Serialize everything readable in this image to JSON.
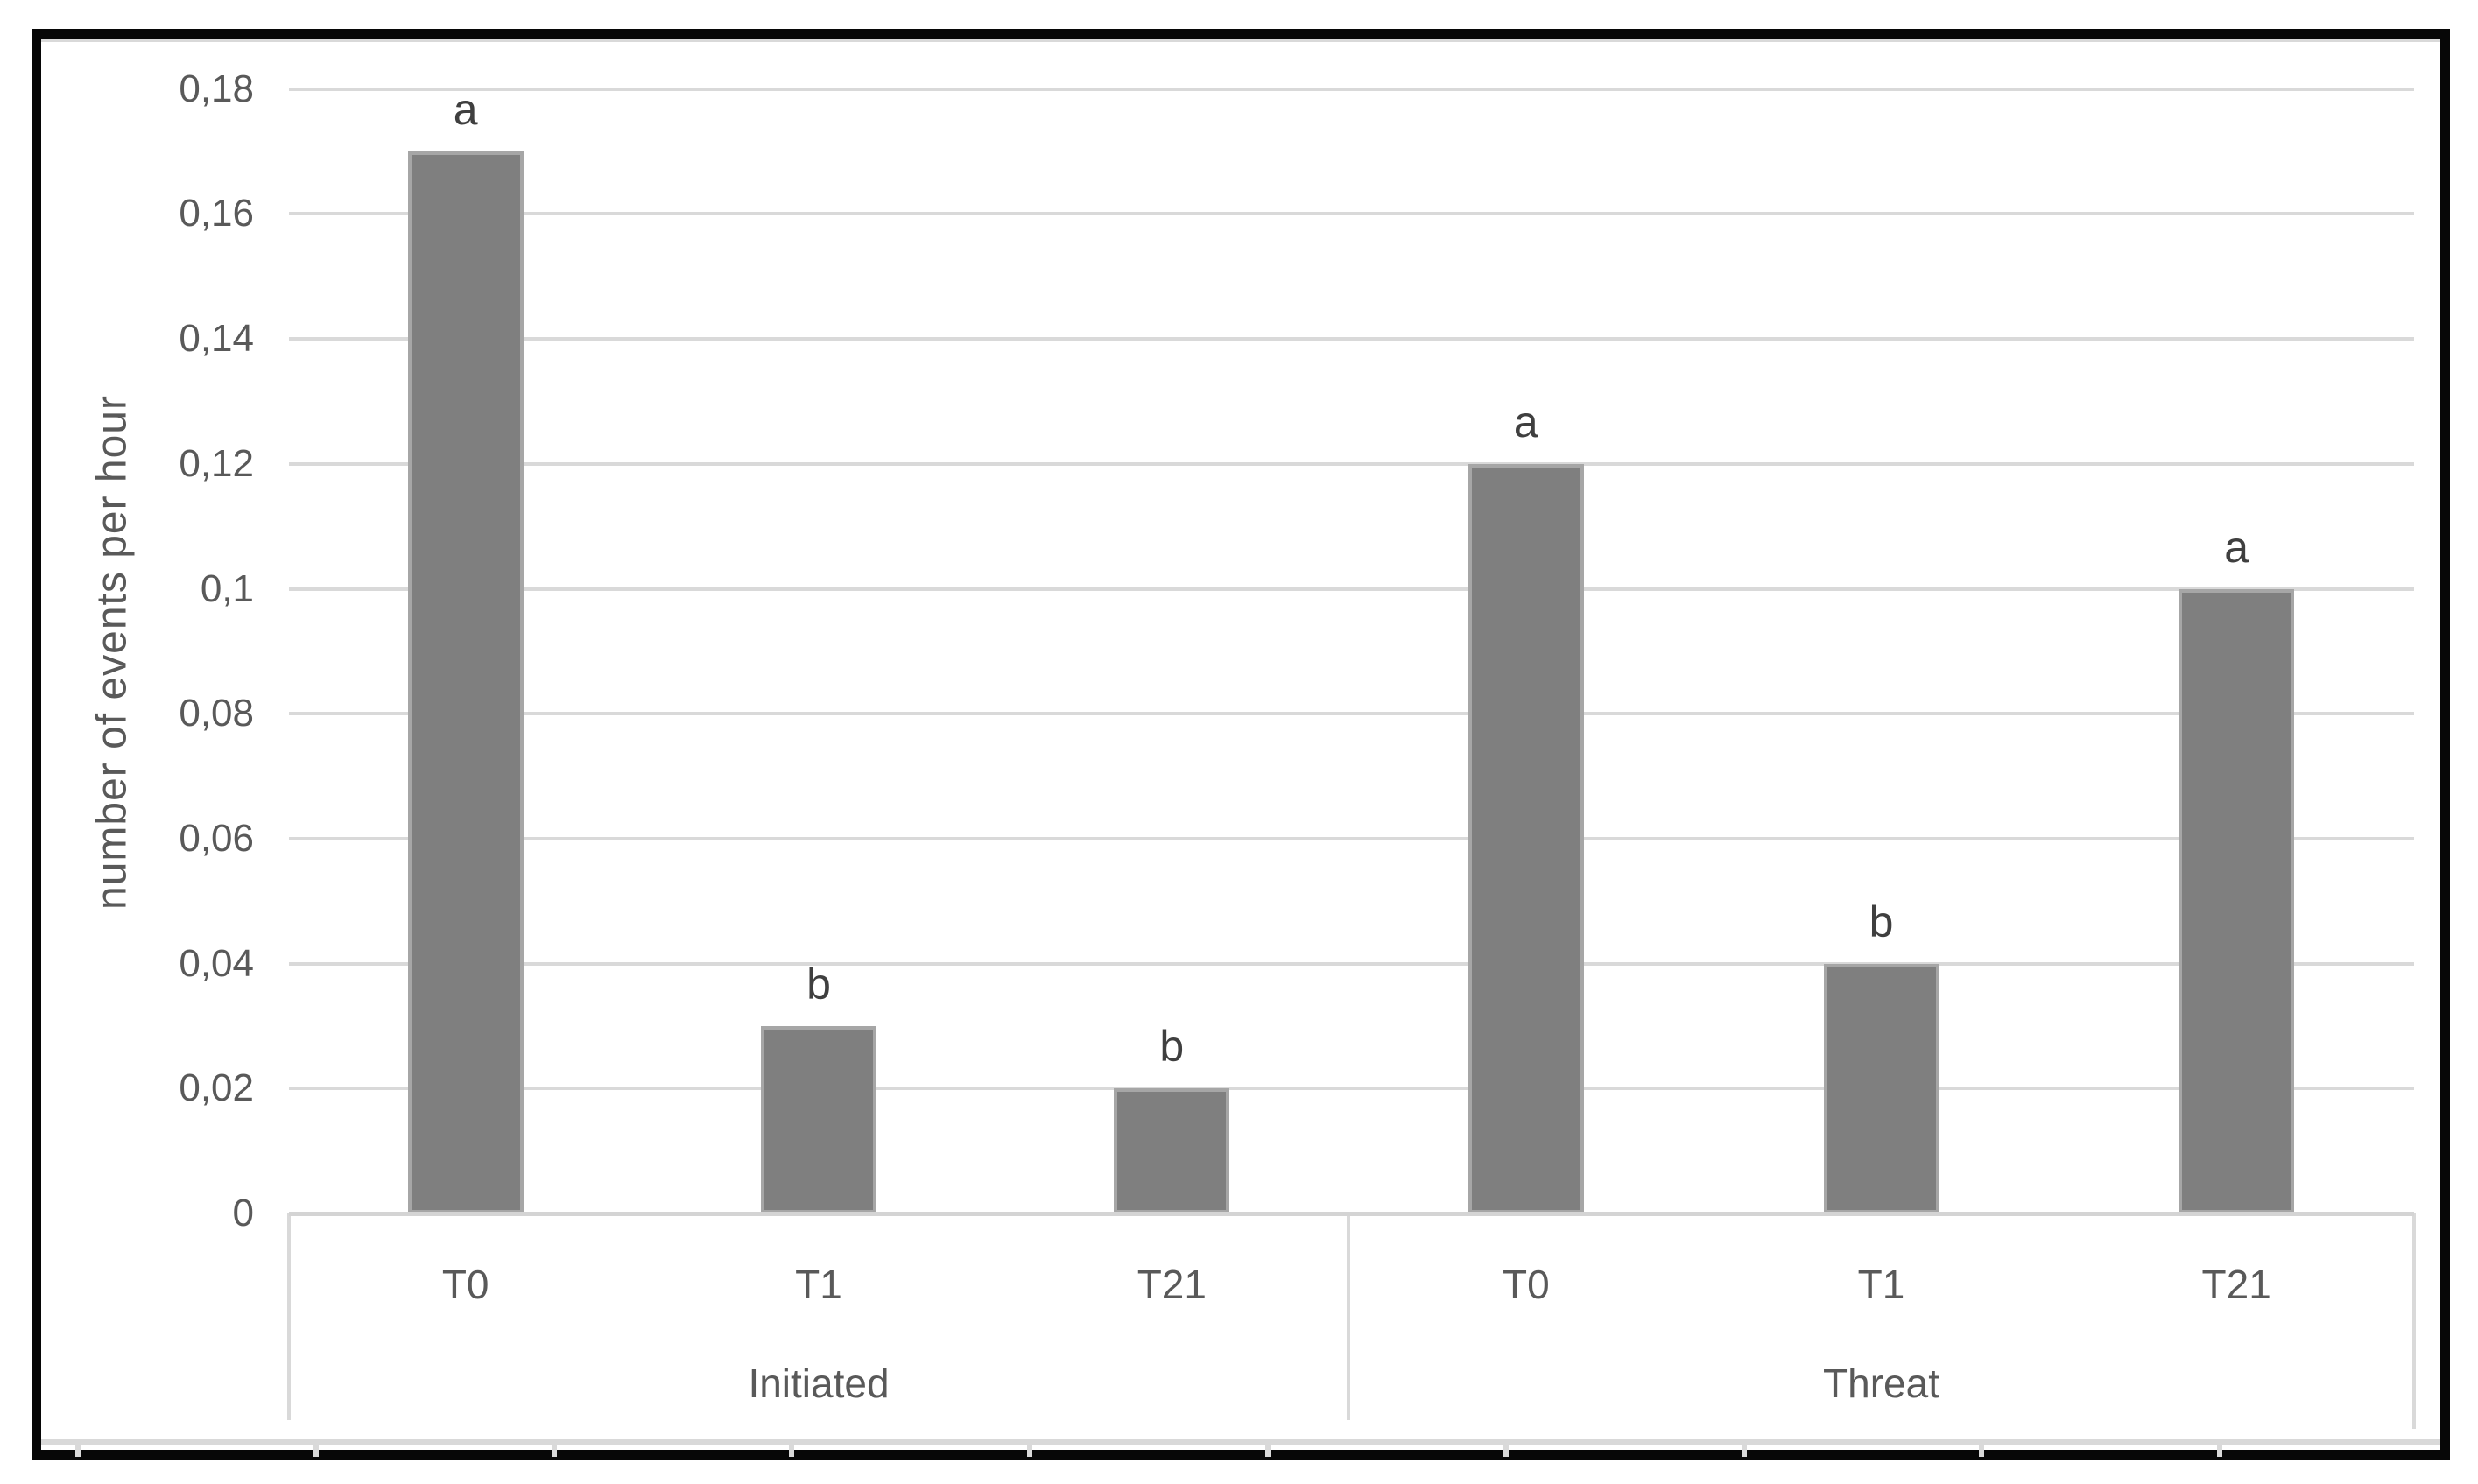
{
  "figure": {
    "background": "#ffffff",
    "frame_color": "#070707"
  },
  "colors": {
    "bar_fill": "#7f7f7f",
    "bar_border": "#a6a6a6",
    "gridline": "#d9d9d9",
    "axis_text": "#595959",
    "sig_letter_text": "#3f3f3f"
  },
  "chart_data": {
    "type": "bar",
    "title": "",
    "xlabel": "",
    "ylabel": "number of events per hour",
    "ylim": [
      0,
      0.18
    ],
    "ytick_step": 0.02,
    "decimal_separator": ",",
    "yticks": [
      "0",
      "0,02",
      "0,04",
      "0,06",
      "0,08",
      "0,1",
      "0,12",
      "0,14",
      "0,16",
      "0,18"
    ],
    "grid": true,
    "legend": false,
    "groups": [
      {
        "label": "Initiated",
        "categories": [
          "T0",
          "T1",
          "T21"
        ],
        "values": [
          0.17,
          0.03,
          0.02
        ],
        "sig_letters": [
          "a",
          "b",
          "b"
        ]
      },
      {
        "label": "Threat",
        "categories": [
          "T0",
          "T1",
          "T21"
        ],
        "values": [
          0.12,
          0.04,
          0.1
        ],
        "sig_letters": [
          "a",
          "b",
          "a"
        ]
      }
    ]
  }
}
